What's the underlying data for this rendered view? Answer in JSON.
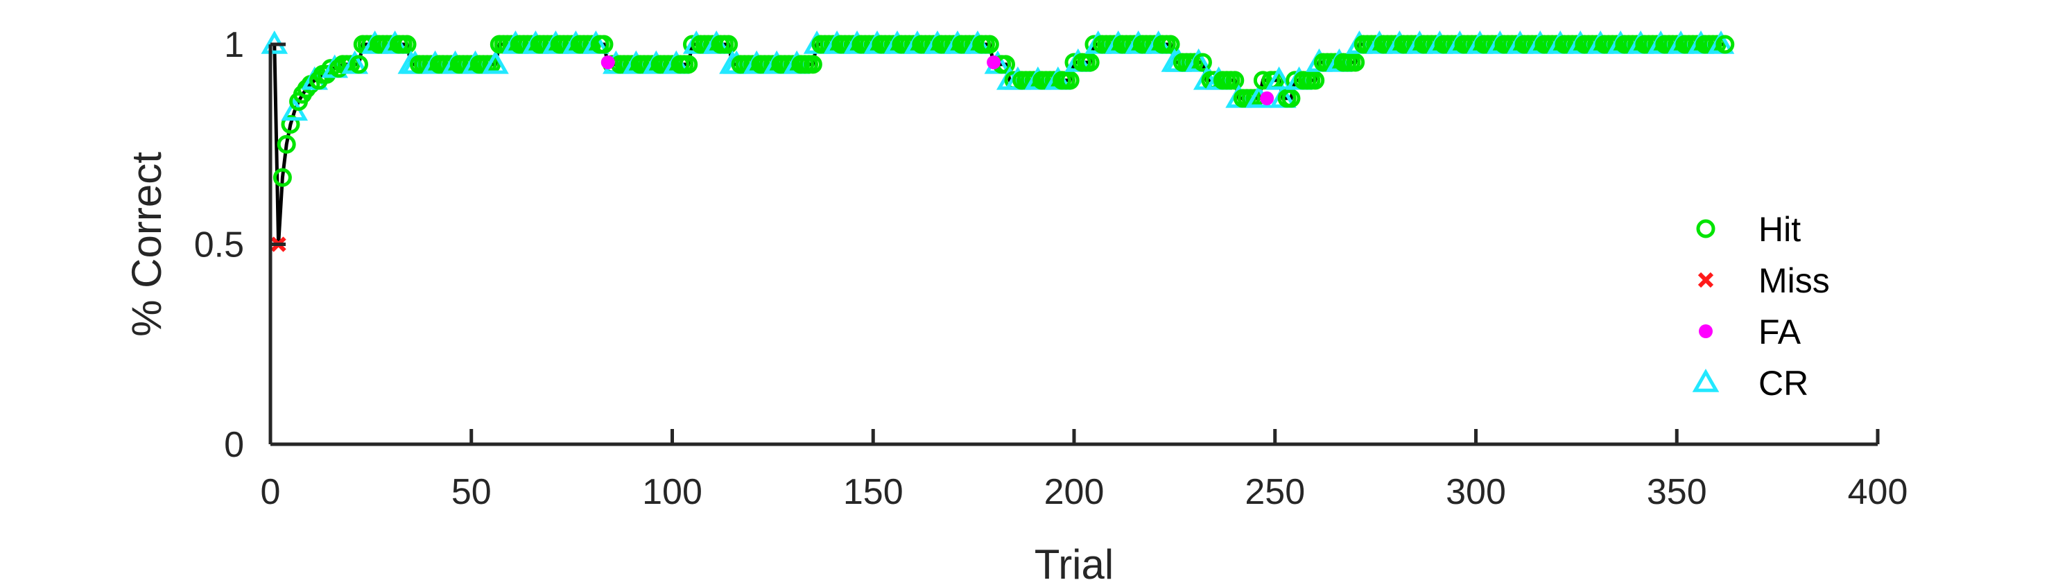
{
  "chart_data": {
    "type": "line",
    "xlabel": "Trial",
    "ylabel": "% Correct",
    "xlim": [
      0,
      400
    ],
    "ylim": [
      0,
      1
    ],
    "xticks": [
      0,
      50,
      100,
      150,
      200,
      250,
      300,
      350,
      400
    ],
    "yticks": [
      0,
      0.5,
      1
    ],
    "ytick_labels": [
      "0",
      "0.5",
      "1"
    ],
    "grid": false,
    "legend_position": "right",
    "line_color": "#000000",
    "legend": [
      {
        "name": "Hit",
        "marker": "circle",
        "color": "#00e400"
      },
      {
        "name": "Miss",
        "marker": "x",
        "color": "#ff1a1a"
      },
      {
        "name": "FA",
        "marker": "dot",
        "color": "#ff00ff"
      },
      {
        "name": "CR",
        "marker": "triangle",
        "color": "#22e8ff"
      }
    ],
    "segments": [
      {
        "from": 1,
        "to": 1,
        "y": 1.0
      },
      {
        "from": 2,
        "to": 2,
        "y": 0.5
      },
      {
        "from": 3,
        "to": 3,
        "y": 0.667
      },
      {
        "from": 4,
        "to": 4,
        "y": 0.75
      },
      {
        "from": 5,
        "to": 5,
        "y": 0.8
      },
      {
        "from": 6,
        "to": 6,
        "y": 0.833
      },
      {
        "from": 7,
        "to": 7,
        "y": 0.857
      },
      {
        "from": 8,
        "to": 8,
        "y": 0.875
      },
      {
        "from": 9,
        "to": 9,
        "y": 0.889
      },
      {
        "from": 10,
        "to": 10,
        "y": 0.9
      },
      {
        "from": 11,
        "to": 12,
        "y": 0.91
      },
      {
        "from": 13,
        "to": 14,
        "y": 0.925
      },
      {
        "from": 15,
        "to": 17,
        "y": 0.94
      },
      {
        "from": 18,
        "to": 22,
        "y": 0.95
      },
      {
        "from": 23,
        "to": 34,
        "y": 1.0
      },
      {
        "from": 35,
        "to": 56,
        "y": 0.95
      },
      {
        "from": 57,
        "to": 83,
        "y": 1.0
      },
      {
        "from": 84,
        "to": 104,
        "y": 0.95
      },
      {
        "from": 105,
        "to": 114,
        "y": 1.0
      },
      {
        "from": 115,
        "to": 135,
        "y": 0.95
      },
      {
        "from": 136,
        "to": 179,
        "y": 1.0
      },
      {
        "from": 180,
        "to": 183,
        "y": 0.95
      },
      {
        "from": 184,
        "to": 199,
        "y": 0.91
      },
      {
        "from": 200,
        "to": 204,
        "y": 0.955
      },
      {
        "from": 205,
        "to": 224,
        "y": 1.0
      },
      {
        "from": 225,
        "to": 232,
        "y": 0.955
      },
      {
        "from": 233,
        "to": 240,
        "y": 0.91
      },
      {
        "from": 241,
        "to": 246,
        "y": 0.865
      },
      {
        "from": 247,
        "to": 251,
        "y": 0.91
      },
      {
        "from": 252,
        "to": 254,
        "y": 0.865
      },
      {
        "from": 255,
        "to": 260,
        "y": 0.91
      },
      {
        "from": 261,
        "to": 270,
        "y": 0.955
      },
      {
        "from": 271,
        "to": 362,
        "y": 1.0
      }
    ],
    "fa_points": [
      {
        "x": 84,
        "y": 0.955
      },
      {
        "x": 180,
        "y": 0.955
      },
      {
        "x": 248,
        "y": 0.865
      }
    ],
    "miss_points": [
      {
        "x": 2,
        "y": 0.5
      }
    ]
  }
}
